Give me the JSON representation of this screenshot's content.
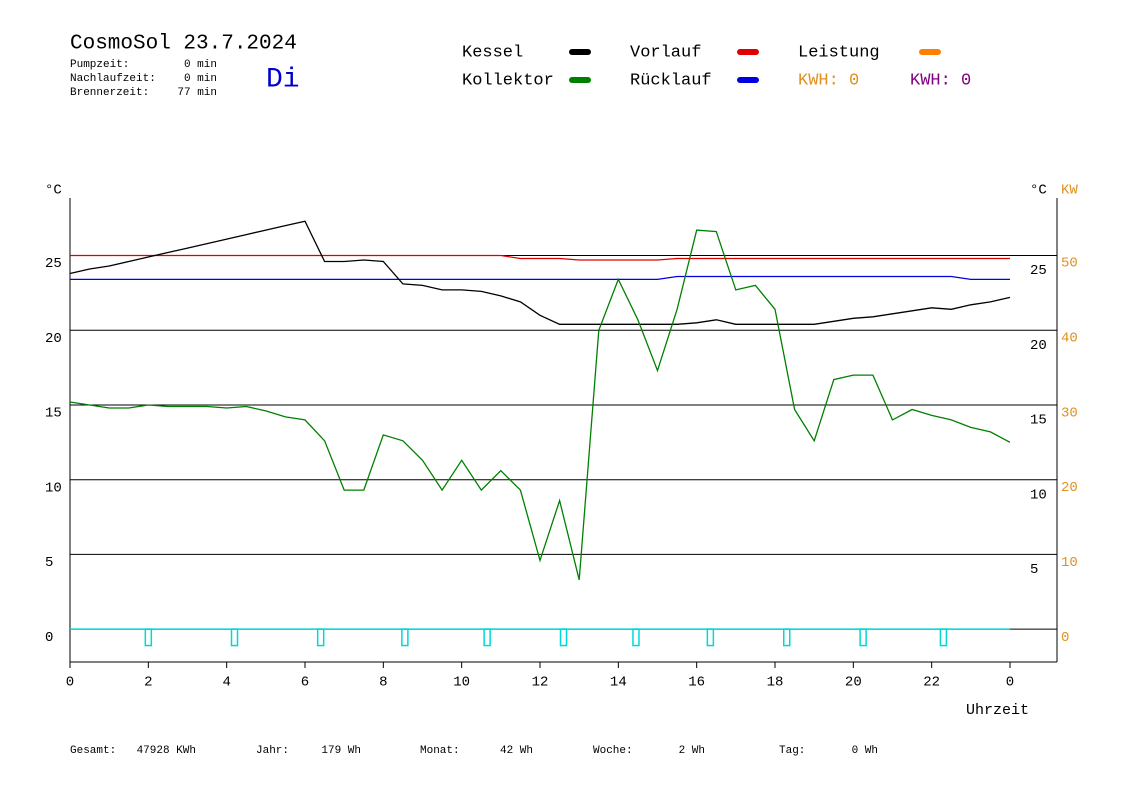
{
  "header": {
    "title": "CosmoSol 23.7.2024",
    "day": "Di",
    "stats": [
      [
        "Pumpzeit:",
        "0 min"
      ],
      [
        "Nachlaufzeit:",
        "0 min"
      ],
      [
        "Brennerzeit:",
        "77 min"
      ]
    ]
  },
  "footer": [
    [
      "Gesamt:",
      "47928 KWh"
    ],
    [
      "Jahr:",
      "179 Wh"
    ],
    [
      "Monat:",
      "42 Wh"
    ],
    [
      "Woche:",
      "2 Wh"
    ],
    [
      "Tag:",
      "0 Wh"
    ]
  ],
  "chart_data": {
    "type": "line",
    "y_label": "°C",
    "y_label_right": "°C",
    "y2_label": "KW",
    "y2_color": "#e09020",
    "x_label": "Uhrzeit",
    "x": [
      0,
      0.5,
      1,
      1.5,
      2,
      2.5,
      3,
      3.5,
      4,
      4.5,
      5,
      5.5,
      6,
      6.5,
      7,
      7.5,
      8,
      8.5,
      9,
      9.5,
      10,
      10.5,
      11,
      11.5,
      12,
      12.5,
      13,
      13.5,
      14,
      14.5,
      15,
      15.5,
      16,
      16.5,
      17,
      17.5,
      18,
      18.5,
      19,
      19.5,
      20,
      20.5,
      21,
      21.5,
      22,
      22.5,
      23,
      23.5,
      24
    ],
    "xlim": [
      0,
      25.2
    ],
    "xticks": [
      0,
      2,
      4,
      6,
      8,
      10,
      12,
      14,
      16,
      18,
      20,
      22,
      {
        "value": 24,
        "label": "0"
      }
    ],
    "ylim": [
      -2.2,
      28.85
    ],
    "yticks": [
      25,
      20,
      15,
      10,
      5,
      0
    ],
    "yticks_right": [
      25,
      20,
      15,
      10,
      5
    ],
    "y2lim": [
      -4.4,
      57.6
    ],
    "y2ticks": [
      50,
      40,
      30,
      20,
      10,
      0
    ],
    "grid": true,
    "series": [
      {
        "name": "Kessel",
        "color": "#000000",
        "values": [
          23.8,
          24.1,
          24.3,
          24.6,
          24.9,
          25.2,
          25.5,
          25.8,
          26.1,
          26.4,
          26.7,
          27.0,
          27.3,
          24.6,
          24.6,
          24.7,
          24.6,
          23.1,
          23.0,
          22.7,
          22.7,
          22.6,
          22.3,
          21.9,
          21.0,
          20.4,
          20.4,
          20.4,
          20.4,
          20.4,
          20.4,
          20.4,
          20.5,
          20.7,
          20.4,
          20.4,
          20.4,
          20.4,
          20.4,
          20.6,
          20.8,
          20.9,
          21.1,
          21.3,
          21.5,
          21.4,
          21.7,
          21.9,
          22.2
        ]
      },
      {
        "name": "Kollektor",
        "color": "#008000",
        "values": [
          15.2,
          15.0,
          14.8,
          14.8,
          15.0,
          14.9,
          14.9,
          14.9,
          14.8,
          14.9,
          14.6,
          14.2,
          14.0,
          12.6,
          9.3,
          9.3,
          13.0,
          12.6,
          11.3,
          9.3,
          11.3,
          9.3,
          10.6,
          9.3,
          4.6,
          8.6,
          3.3,
          20.0,
          23.4,
          20.7,
          17.3,
          21.4,
          26.7,
          26.6,
          22.7,
          23.0,
          21.4,
          14.7,
          12.6,
          16.7,
          17.0,
          17.0,
          14.0,
          14.7,
          14.3,
          14.0,
          13.5,
          13.2,
          12.5
        ]
      },
      {
        "name": "Vorlauf",
        "color": "#e00000",
        "values": [
          25.0,
          25.0,
          25.0,
          25.0,
          25.0,
          25.0,
          25.0,
          25.0,
          25.0,
          25.0,
          25.0,
          25.0,
          25.0,
          25.0,
          25.0,
          25.0,
          25.0,
          25.0,
          25.0,
          25.0,
          25.0,
          25.0,
          25.0,
          24.8,
          24.8,
          24.8,
          24.7,
          24.7,
          24.7,
          24.7,
          24.7,
          24.8,
          24.8,
          24.8,
          24.8,
          24.8,
          24.8,
          24.8,
          24.8,
          24.8,
          24.8,
          24.8,
          24.8,
          24.8,
          24.8,
          24.8,
          24.8,
          24.8,
          24.8
        ]
      },
      {
        "name": "Rücklauf",
        "color": "#0000e0",
        "values": [
          23.4,
          23.4,
          23.4,
          23.4,
          23.4,
          23.4,
          23.4,
          23.4,
          23.4,
          23.4,
          23.4,
          23.4,
          23.4,
          23.4,
          23.4,
          23.4,
          23.4,
          23.4,
          23.4,
          23.4,
          23.4,
          23.4,
          23.4,
          23.4,
          23.4,
          23.4,
          23.4,
          23.4,
          23.4,
          23.4,
          23.4,
          23.6,
          23.6,
          23.6,
          23.6,
          23.6,
          23.6,
          23.6,
          23.6,
          23.6,
          23.6,
          23.6,
          23.6,
          23.6,
          23.6,
          23.6,
          23.4,
          23.4,
          23.4
        ]
      },
      {
        "name": "Leistung",
        "color": "#ff8000"
      }
    ],
    "kwh": [
      {
        "label": "KWH: 0",
        "color": "#e09020"
      },
      {
        "label": "KWH: 0",
        "color": "#800080"
      }
    ],
    "pump": {
      "color": "#00d8d8",
      "x": [
        2.0,
        4.2,
        6.4,
        8.55,
        10.65,
        12.6,
        14.45,
        16.35,
        18.3,
        20.25,
        22.3
      ],
      "values": [
        -1.1,
        -1.1,
        -1.1,
        -1.1,
        -1.1,
        -1.1,
        -1.1,
        -1.1,
        -1.1,
        -1.1,
        -1.1
      ]
    }
  }
}
